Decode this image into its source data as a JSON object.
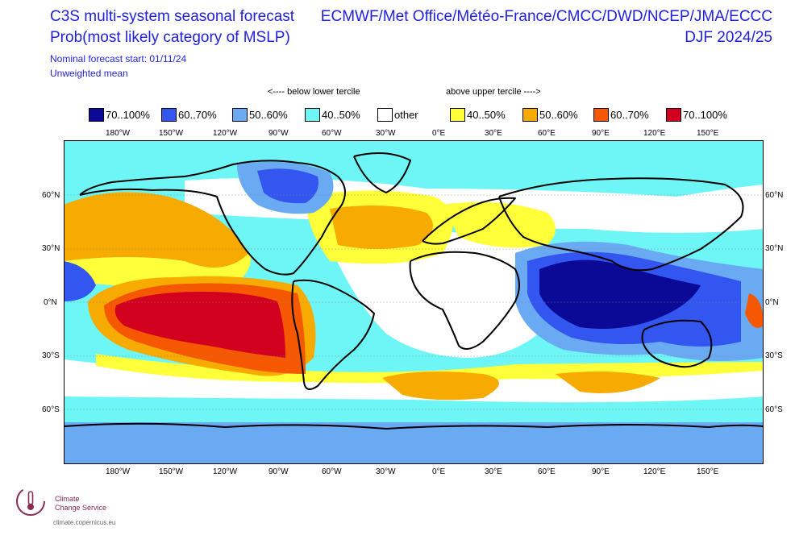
{
  "header": {
    "title": "C3S multi-system seasonal forecast",
    "subtitle": "Prob(most likely category of MSLP)",
    "forecast_start": "Nominal forecast start: 01/11/24",
    "mean_type": "Unweighted mean",
    "systems": "ECMWF/Met Office/Météo-France/CMCC/DWD/NCEP/JMA/ECCC",
    "season": "DJF 2024/25"
  },
  "legend": {
    "below_label": "<---- below lower tercile",
    "above_label": "above upper tercile ---->",
    "items": [
      {
        "label": "70..100%",
        "color": "#0a0a96"
      },
      {
        "label": "60..70%",
        "color": "#3355f0"
      },
      {
        "label": "50..60%",
        "color": "#6aaaf2"
      },
      {
        "label": "40..50%",
        "color": "#6ef6f6"
      },
      {
        "label": "other",
        "color": "#ffffff"
      },
      {
        "label": "40..50%",
        "color": "#ffff3a"
      },
      {
        "label": "50..60%",
        "color": "#f7aa00"
      },
      {
        "label": "60..70%",
        "color": "#f55800"
      },
      {
        "label": "70..100%",
        "color": "#d2001e"
      }
    ]
  },
  "axes": {
    "lon_labels": [
      "180°W",
      "150°W",
      "120°W",
      "90°W",
      "60°W",
      "30°W",
      "0°E",
      "30°E",
      "60°E",
      "90°E",
      "120°E",
      "150°E"
    ],
    "lat_labels": [
      "60°N",
      "30°N",
      "0°N",
      "30°S",
      "60°S"
    ]
  },
  "logo": {
    "line1": "Climate",
    "line2": "Change Service",
    "url": "climate.copernicus.eu"
  }
}
